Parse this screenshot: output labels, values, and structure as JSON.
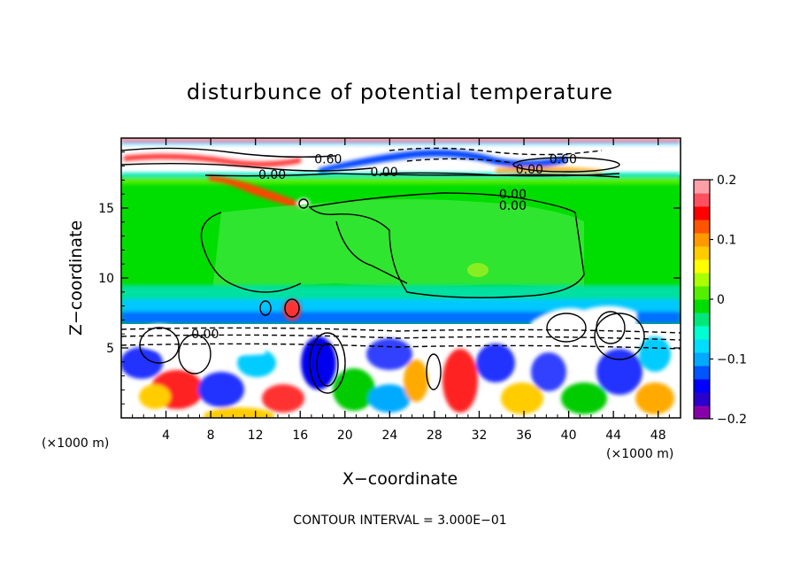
{
  "chart_data": {
    "type": "heatmap",
    "title": "disturbunce of potential temperature",
    "xlabel": "X−coordinate",
    "ylabel": "Z−coordinate",
    "x_unit_label": "(×1000 m)",
    "x_unit_label_right": "(×1000 m)",
    "xlim": [
      0,
      50
    ],
    "ylim": [
      0,
      20
    ],
    "x_ticks": [
      4,
      8,
      12,
      16,
      20,
      24,
      28,
      32,
      36,
      40,
      44,
      48
    ],
    "y_ticks": [
      5,
      10,
      15
    ],
    "colorbar": {
      "range": [
        -0.2,
        0.2
      ],
      "ticks": [
        0.2,
        0.1,
        0,
        -0.1,
        -0.2
      ],
      "tick_labels": [
        "0.2",
        "0.1",
        "0",
        "−0.1",
        "−0.2"
      ],
      "colors": [
        "#8800aa",
        "#2a00cc",
        "#0000ff",
        "#0055ff",
        "#00aaff",
        "#00ddff",
        "#00ffd0",
        "#00e87a",
        "#00dd00",
        "#55ee00",
        "#aaff00",
        "#ffff00",
        "#ffcc00",
        "#ff9900",
        "#ff5500",
        "#ff0000",
        "#ff5060",
        "#ffa0a8"
      ]
    },
    "contour_labels": [
      {
        "text": "0.60",
        "x": 18.5,
        "z": 18.5
      },
      {
        "text": "0.60",
        "x": 39.5,
        "z": 18.5
      },
      {
        "text": "0.00",
        "x": 13.5,
        "z": 17.4
      },
      {
        "text": "0.00",
        "x": 23.5,
        "z": 17.6
      },
      {
        "text": "0.00",
        "x": 36.5,
        "z": 17.8
      },
      {
        "text": "0.00",
        "x": 35.0,
        "z": 16.0
      },
      {
        "text": "0.00",
        "x": 35.0,
        "z": 15.2
      },
      {
        "text": "0.00",
        "x": 7.5,
        "z": 6.0
      }
    ],
    "contour_interval_text": "CONTOUR INTERVAL = 3.000E−01"
  }
}
